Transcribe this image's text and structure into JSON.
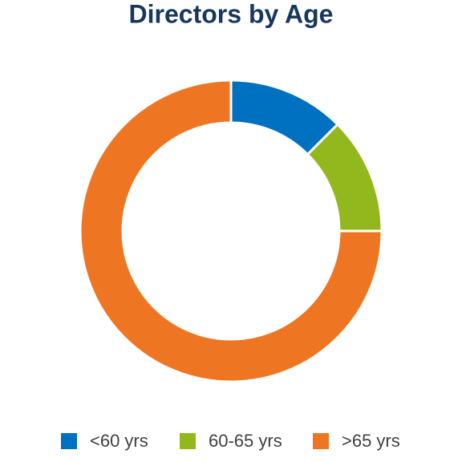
{
  "chart_data": {
    "type": "donut",
    "title": "Directors by Age",
    "categories": [
      "<60 yrs",
      "60-65 yrs",
      ">65 yrs"
    ],
    "values": [
      12.5,
      12.5,
      75
    ],
    "colors": [
      "#0070c0",
      "#92b81e",
      "#ee7623"
    ],
    "legend": "bottom"
  }
}
